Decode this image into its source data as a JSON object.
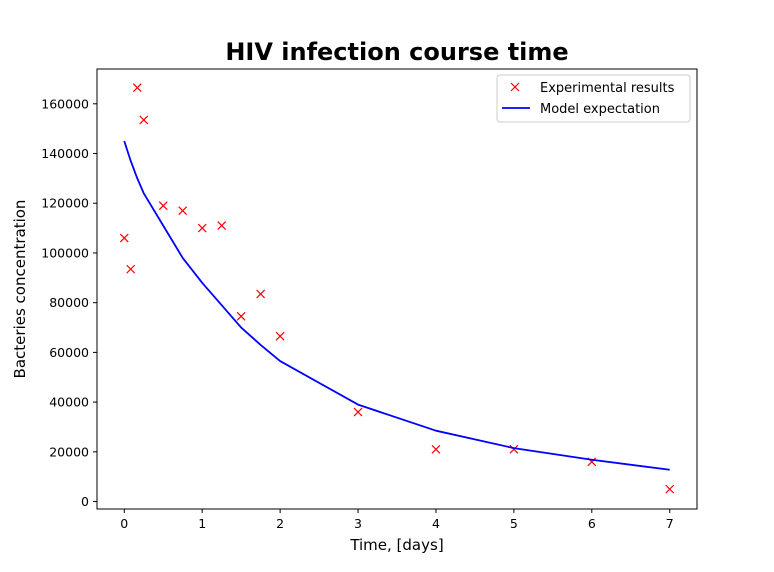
{
  "chart_data": {
    "type": "line",
    "title": "HIV infection course time",
    "xlabel": "Time, [days]",
    "ylabel": "Bacteries concentration",
    "xlim": [
      -0.35,
      7.35
    ],
    "ylim": [
      -3000,
      174000
    ],
    "xticks": [
      0,
      1,
      2,
      3,
      4,
      5,
      6,
      7
    ],
    "yticks": [
      0,
      20000,
      40000,
      60000,
      80000,
      100000,
      120000,
      140000,
      160000
    ],
    "grid": false,
    "legend_position": "top-right",
    "series": [
      {
        "name": "Experimental results",
        "style": "marker-x",
        "color": "#ff0000",
        "x": [
          0,
          0.083,
          0.167,
          0.25,
          0.5,
          0.75,
          1,
          1.25,
          1.5,
          1.75,
          2,
          3,
          4,
          5,
          6,
          7
        ],
        "y": [
          106000,
          93500,
          166500,
          153500,
          119000,
          117000,
          110000,
          111000,
          74500,
          83500,
          66500,
          36000,
          21000,
          21000,
          16000,
          5000
        ]
      },
      {
        "name": "Model expectation",
        "style": "line",
        "color": "#0000ff",
        "x": [
          0,
          0.083,
          0.167,
          0.25,
          0.5,
          0.75,
          1,
          1.25,
          1.5,
          1.75,
          2,
          3,
          4,
          5,
          6,
          7
        ],
        "y": [
          145000,
          137000,
          130000,
          124000,
          111000,
          98000,
          88000,
          79000,
          70000,
          63000,
          56500,
          39000,
          28500,
          21500,
          16800,
          12800
        ]
      }
    ]
  }
}
